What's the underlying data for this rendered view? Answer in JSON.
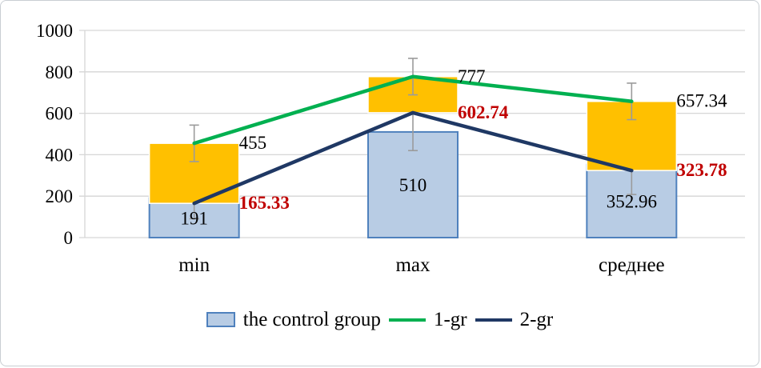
{
  "chart_data": {
    "type": "bar+line",
    "title": "",
    "xlabel": "",
    "ylabel": "",
    "categories": [
      "min",
      "max",
      "среднее"
    ],
    "axis": {
      "ymin": 0,
      "ymax": 1000,
      "step": 200,
      "ticks": [
        "0",
        "200",
        "400",
        "600",
        "800",
        "1000"
      ],
      "grid": "on"
    },
    "bar_series": {
      "name": "the control group",
      "values": [
        191,
        510,
        352.96
      ],
      "labels": [
        "191",
        "510",
        "352.96"
      ],
      "fill": "#b8cce4",
      "stroke": "#4f81bd",
      "errors": [
        100,
        90,
        145
      ]
    },
    "line_series": [
      {
        "name": "1-gr",
        "values": [
          455,
          777,
          657.34
        ],
        "labels": [
          "455",
          "777",
          "657.34"
        ],
        "color": "#00b050",
        "label_color": "#000000",
        "label_bold": false,
        "errors": [
          88,
          88,
          88
        ]
      },
      {
        "name": "2-gr",
        "values": [
          165.33,
          602.74,
          323.78
        ],
        "labels": [
          "165.33",
          "602.74",
          "323.78"
        ],
        "color": "#1f3864",
        "label_color": "#c00000",
        "label_bold": true,
        "errors": []
      }
    ],
    "up_down_bars": {
      "between": [
        "1-gr",
        "2-gr"
      ],
      "fill": "#ffc000",
      "stroke": "#ffffff"
    },
    "error_bar_color": "#9b9b9b",
    "gridline_color": "#d6d6d6",
    "legend": {
      "position": "bottom",
      "items": [
        {
          "label": "the control group",
          "type": "bar"
        },
        {
          "label": "1-gr",
          "type": "line"
        },
        {
          "label": "2-gr",
          "type": "line"
        }
      ]
    }
  }
}
